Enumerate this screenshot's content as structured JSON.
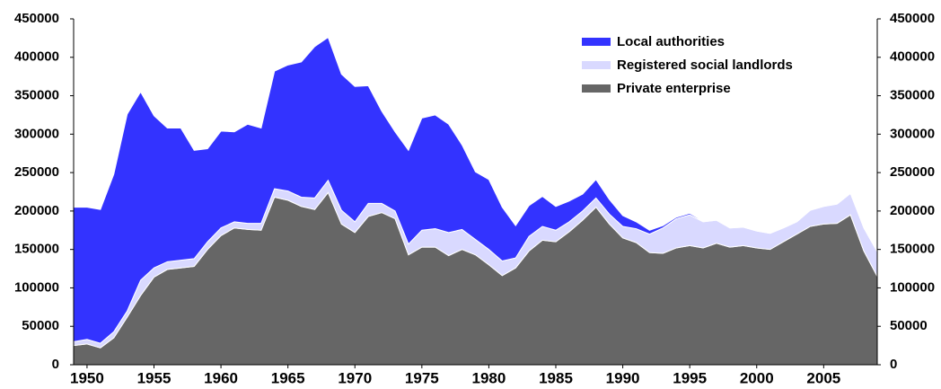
{
  "chart_data": {
    "type": "stacked_area",
    "x": [
      1949,
      1950,
      1951,
      1952,
      1953,
      1954,
      1955,
      1956,
      1957,
      1958,
      1959,
      1960,
      1961,
      1962,
      1963,
      1964,
      1965,
      1966,
      1967,
      1968,
      1969,
      1970,
      1971,
      1972,
      1973,
      1974,
      1975,
      1976,
      1977,
      1978,
      1979,
      1980,
      1981,
      1982,
      1983,
      1984,
      1985,
      1986,
      1987,
      1988,
      1989,
      1990,
      1991,
      1992,
      1993,
      1994,
      1995,
      1996,
      1997,
      1998,
      1999,
      2000,
      2001,
      2002,
      2003,
      2004,
      2005,
      2006,
      2007,
      2008,
      2009
    ],
    "series": [
      {
        "name": "Private enterprise",
        "color": "#666666",
        "values": [
          25000,
          27000,
          22000,
          35000,
          62000,
          90000,
          114000,
          124000,
          126000,
          128000,
          150000,
          168000,
          178000,
          176000,
          175000,
          218000,
          214000,
          206000,
          202000,
          224000,
          183000,
          172000,
          193000,
          198000,
          190000,
          143000,
          153000,
          153000,
          142000,
          150000,
          143000,
          130000,
          116000,
          126000,
          148000,
          162000,
          160000,
          173000,
          188000,
          205000,
          183000,
          165000,
          159000,
          146000,
          145000,
          152000,
          155000,
          152000,
          158000,
          153000,
          155000,
          152000,
          150000,
          160000,
          170000,
          180000,
          183000,
          184000,
          195000,
          148000,
          115000
        ]
      },
      {
        "name": "Registered social landlords",
        "color": "#d9d9ff",
        "values": [
          5000,
          6000,
          6000,
          8000,
          8000,
          20000,
          12000,
          10000,
          10000,
          10000,
          10000,
          10000,
          8000,
          8000,
          9000,
          11000,
          12000,
          12000,
          15000,
          16000,
          18000,
          14000,
          17000,
          12000,
          10000,
          14000,
          22000,
          24000,
          30000,
          26000,
          20000,
          20000,
          19000,
          13000,
          19000,
          18000,
          15000,
          13000,
          12000,
          12000,
          13000,
          15000,
          18000,
          24000,
          33000,
          38000,
          40000,
          34000,
          30000,
          25000,
          24000,
          22000,
          21000,
          18000,
          16000,
          21000,
          23000,
          25000,
          28000,
          30000,
          32000
        ]
      },
      {
        "name": "Local authorities",
        "color": "#3333ff",
        "values": [
          175000,
          172000,
          174000,
          205000,
          256000,
          245000,
          198000,
          174000,
          172000,
          141000,
          121000,
          126000,
          117000,
          129000,
          124000,
          153000,
          164000,
          176000,
          197000,
          186000,
          177000,
          176000,
          153000,
          120000,
          103000,
          122000,
          146000,
          148000,
          141000,
          110000,
          88000,
          91000,
          70000,
          42000,
          40000,
          39000,
          31000,
          27000,
          22000,
          24000,
          19000,
          14000,
          9000,
          5000,
          3000,
          2000,
          2000,
          1000,
          1000,
          1000,
          0,
          0,
          0,
          0,
          0,
          0,
          0,
          0,
          0,
          0,
          0
        ]
      }
    ],
    "xlim": [
      1949,
      2009
    ],
    "xticks": [
      1950,
      1955,
      1960,
      1965,
      1970,
      1975,
      1980,
      1985,
      1990,
      1995,
      2000,
      2005
    ],
    "ylim": [
      0,
      450000
    ],
    "yticks": [
      0,
      50000,
      100000,
      150000,
      200000,
      250000,
      300000,
      350000,
      400000,
      450000
    ],
    "legend": "upper center"
  }
}
